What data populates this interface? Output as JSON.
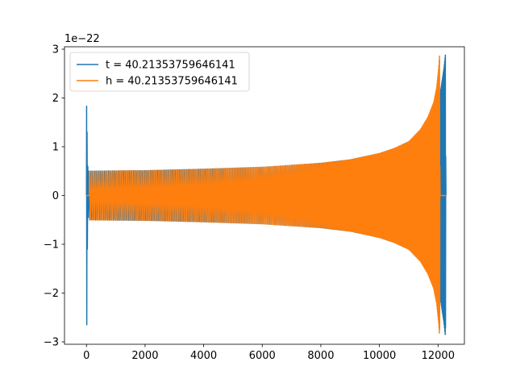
{
  "chart_data": {
    "type": "line",
    "scale_label": "1e−22",
    "xlim": [
      -750,
      12900
    ],
    "ylim": [
      -3.05,
      3.05
    ],
    "x_ticks": [
      0,
      2000,
      4000,
      6000,
      8000,
      10000,
      12000
    ],
    "x_tick_labels": [
      "0",
      "2000",
      "4000",
      "6000",
      "8000",
      "10000",
      "12000"
    ],
    "y_ticks": [
      -3,
      -2,
      -1,
      0,
      1,
      2,
      3
    ],
    "y_tick_labels": [
      "−3",
      "−2",
      "−1",
      "0",
      "1",
      "2",
      "3"
    ],
    "grid": false,
    "legend_position": "upper-left",
    "series": [
      {
        "name": "t = 40.21353759646141",
        "color": "#1f77b4",
        "x_range": [
          0,
          12288
        ],
        "spike_start": [
          [
            0,
            0
          ],
          [
            5,
            1.83
          ],
          [
            10,
            -2.65
          ],
          [
            20,
            1.3
          ],
          [
            30,
            -1.1
          ],
          [
            45,
            0.6
          ],
          [
            60,
            -0.45
          ],
          [
            80,
            0.45
          ]
        ],
        "envelope": [
          [
            80,
            0.5
          ],
          [
            2000,
            0.51
          ],
          [
            4000,
            0.54
          ],
          [
            6000,
            0.58
          ],
          [
            8000,
            0.66
          ],
          [
            9000,
            0.73
          ],
          [
            10000,
            0.86
          ],
          [
            10500,
            0.96
          ],
          [
            11000,
            1.1
          ],
          [
            11500,
            1.35
          ],
          [
            11800,
            1.6
          ],
          [
            12000,
            1.9
          ],
          [
            12100,
            2.2
          ],
          [
            12200,
            2.6
          ],
          [
            12250,
            2.88
          ]
        ],
        "spike_end": [
          [
            12255,
            -2.72
          ],
          [
            12262,
            0.8
          ],
          [
            12270,
            0
          ]
        ],
        "flat_end": [
          12270,
          12288
        ]
      },
      {
        "name": "h = 40.21353759646141",
        "color": "#ff7f0e",
        "x_range": [
          0,
          12288
        ],
        "flat_start": [
          0,
          100
        ],
        "envelope": [
          [
            100,
            0.5
          ],
          [
            2000,
            0.51
          ],
          [
            4000,
            0.54
          ],
          [
            6000,
            0.58
          ],
          [
            8000,
            0.66
          ],
          [
            9000,
            0.73
          ],
          [
            10000,
            0.86
          ],
          [
            10500,
            0.96
          ],
          [
            11000,
            1.1
          ],
          [
            11400,
            1.35
          ],
          [
            11650,
            1.6
          ],
          [
            11850,
            1.9
          ],
          [
            11950,
            2.2
          ],
          [
            12020,
            2.6
          ],
          [
            12050,
            2.86
          ]
        ],
        "spike_end": [
          [
            12055,
            -2.74
          ],
          [
            12062,
            0.6
          ],
          [
            12070,
            0
          ]
        ],
        "flat_end": [
          12070,
          12288
        ]
      }
    ]
  }
}
